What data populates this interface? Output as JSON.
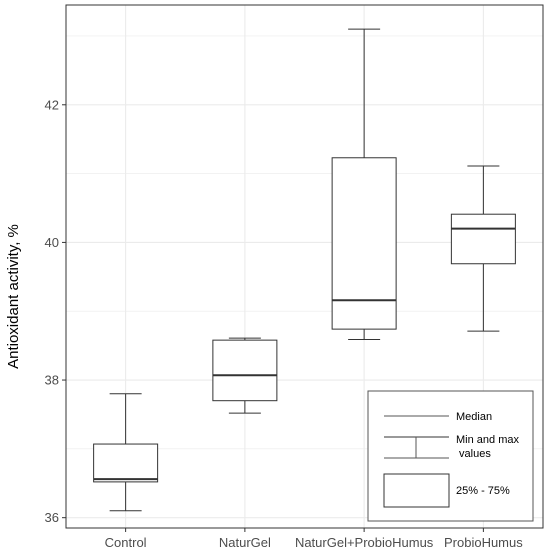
{
  "chart_data": {
    "type": "boxplot",
    "title": "",
    "xlabel": "",
    "ylabel": "Antioxidant activity, %",
    "ylim": [
      35.85,
      43.45
    ],
    "yticks": [
      36,
      38,
      40,
      42
    ],
    "grid": true,
    "categories": [
      "Control",
      "NaturGel",
      "NaturGel+ProbioHumus",
      "ProbioHumus"
    ],
    "boxes": [
      {
        "category": "Control",
        "min": 36.1,
        "q1": 36.52,
        "median": 36.56,
        "q3": 37.07,
        "max": 37.8
      },
      {
        "category": "NaturGel",
        "min": 37.52,
        "q1": 37.7,
        "median": 38.07,
        "q3": 38.58,
        "max": 38.61
      },
      {
        "category": "NaturGel+ProbioHumus",
        "min": 38.59,
        "q1": 38.74,
        "median": 39.16,
        "q3": 41.23,
        "max": 43.1
      },
      {
        "category": "ProbioHumus",
        "min": 38.71,
        "q1": 39.69,
        "median": 40.2,
        "q3": 40.41,
        "max": 41.11
      }
    ],
    "legend": {
      "position": "bottom-right",
      "median_label": "Median",
      "minmax_label": "Min and max\n values",
      "iqr_label": "25% - 75%"
    },
    "colors": {
      "box_stroke": "#333333",
      "grid": "#ebebeb",
      "panel_border": "#333333"
    }
  }
}
